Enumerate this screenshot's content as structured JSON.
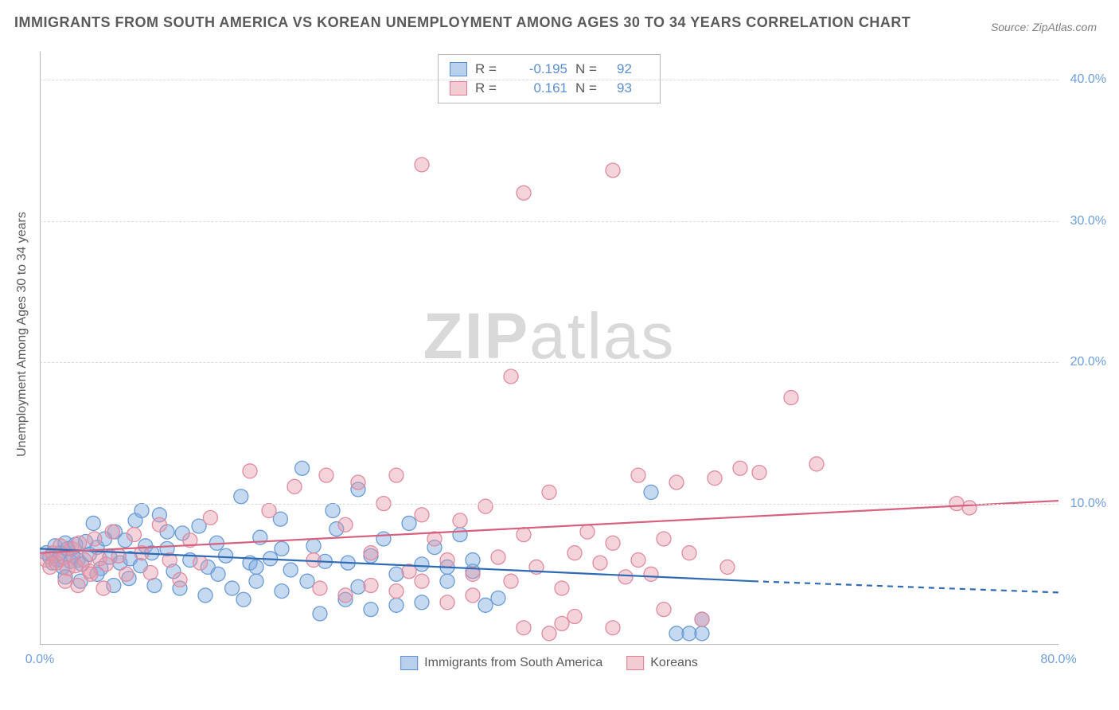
{
  "title": "IMMIGRANTS FROM SOUTH AMERICA VS KOREAN UNEMPLOYMENT AMONG AGES 30 TO 34 YEARS CORRELATION CHART",
  "source": "Source: ZipAtlas.com",
  "y_axis_label": "Unemployment Among Ages 30 to 34 years",
  "watermark_a": "ZIP",
  "watermark_b": "atlas",
  "chart": {
    "type": "scatter",
    "xlim": [
      0,
      80
    ],
    "ylim": [
      0,
      42
    ],
    "y_ticks": [
      {
        "v": 10,
        "label": "10.0%"
      },
      {
        "v": 20,
        "label": "20.0%"
      },
      {
        "v": 30,
        "label": "30.0%"
      },
      {
        "v": 40,
        "label": "40.0%"
      }
    ],
    "x_ticks": [
      {
        "v": 0,
        "label": "0.0%"
      },
      {
        "v": 80,
        "label": "80.0%"
      }
    ],
    "grid_color": "#d9d9d9",
    "tick_label_color": "#6f9fdc",
    "axis_label_color": "#5a5a5a",
    "background_color": "#ffffff",
    "series": [
      {
        "name": "Immigrants from South America",
        "color_fill": "rgba(127,170,223,0.45)",
        "color_stroke": "#6a9bd6",
        "marker_radius": 9,
        "R": "-0.195",
        "N": "92",
        "trend": {
          "x1": 0,
          "y1": 6.8,
          "x2": 56,
          "y2": 4.5,
          "color": "#2f6bb5",
          "width": 2.2,
          "dash_from_x": 56,
          "x_end": 80,
          "y_end": 3.7
        },
        "points": [
          [
            0.5,
            6.5
          ],
          [
            0.8,
            6.2
          ],
          [
            1.0,
            5.8
          ],
          [
            1.2,
            7.0
          ],
          [
            1.4,
            6.0
          ],
          [
            1.6,
            6.5
          ],
          [
            1.8,
            5.5
          ],
          [
            2.0,
            7.2
          ],
          [
            2.2,
            6.8
          ],
          [
            2.4,
            5.9
          ],
          [
            2.6,
            6.3
          ],
          [
            2.8,
            7.1
          ],
          [
            3.0,
            6.0
          ],
          [
            3.3,
            5.7
          ],
          [
            3.6,
            7.3
          ],
          [
            3.9,
            6.4
          ],
          [
            4.2,
            8.6
          ],
          [
            4.5,
            6.9
          ],
          [
            4.8,
            5.4
          ],
          [
            5.1,
            7.5
          ],
          [
            5.5,
            6.2
          ],
          [
            5.9,
            8.0
          ],
          [
            6.3,
            5.8
          ],
          [
            6.7,
            7.4
          ],
          [
            7.1,
            6.1
          ],
          [
            7.5,
            8.8
          ],
          [
            7.9,
            5.6
          ],
          [
            8.3,
            7.0
          ],
          [
            8.8,
            6.5
          ],
          [
            9.4,
            9.2
          ],
          [
            2.0,
            4.8
          ],
          [
            3.2,
            4.5
          ],
          [
            4.5,
            5.0
          ],
          [
            5.8,
            4.2
          ],
          [
            7.0,
            4.7
          ],
          [
            10.0,
            6.8
          ],
          [
            10.5,
            5.2
          ],
          [
            11.2,
            7.9
          ],
          [
            11.8,
            6.0
          ],
          [
            12.5,
            8.4
          ],
          [
            13.2,
            5.5
          ],
          [
            13.9,
            7.2
          ],
          [
            14.6,
            6.3
          ],
          [
            15.1,
            4.0
          ],
          [
            15.8,
            10.5
          ],
          [
            16.5,
            5.8
          ],
          [
            17.3,
            7.6
          ],
          [
            18.1,
            6.1
          ],
          [
            18.9,
            8.9
          ],
          [
            19.7,
            5.3
          ],
          [
            20.6,
            12.5
          ],
          [
            21.5,
            7.0
          ],
          [
            22.4,
            5.9
          ],
          [
            23.3,
            8.2
          ],
          [
            24.2,
            5.8
          ],
          [
            25,
            11.0
          ],
          [
            25,
            4.1
          ],
          [
            26,
            6.3
          ],
          [
            27,
            7.5
          ],
          [
            28,
            5.0
          ],
          [
            29,
            8.6
          ],
          [
            30,
            5.7
          ],
          [
            31,
            6.9
          ],
          [
            32,
            4.5
          ],
          [
            33,
            7.8
          ],
          [
            34,
            5.2
          ],
          [
            26,
            2.5
          ],
          [
            28,
            2.8
          ],
          [
            30,
            3.0
          ],
          [
            24,
            3.2
          ],
          [
            22,
            2.2
          ],
          [
            23,
            9.5
          ],
          [
            17,
            4.5
          ],
          [
            19,
            3.8
          ],
          [
            35,
            2.8
          ],
          [
            36,
            3.3
          ],
          [
            34,
            6.0
          ],
          [
            32,
            5.5
          ],
          [
            48,
            10.8
          ],
          [
            50,
            0.8
          ],
          [
            51,
            0.8
          ],
          [
            52,
            0.8
          ],
          [
            52,
            1.8
          ],
          [
            11,
            4.0
          ],
          [
            13,
            3.5
          ],
          [
            16,
            3.2
          ],
          [
            19,
            6.8
          ],
          [
            21,
            4.5
          ],
          [
            8,
            9.5
          ],
          [
            9,
            4.2
          ],
          [
            10,
            8.0
          ],
          [
            14,
            5.0
          ],
          [
            17,
            5.5
          ]
        ]
      },
      {
        "name": "Koreans",
        "color_fill": "rgba(232,151,168,0.42)",
        "color_stroke": "#e08ba0",
        "marker_radius": 9,
        "R": "0.161",
        "N": "93",
        "trend": {
          "x1": 0,
          "y1": 6.5,
          "x2": 80,
          "y2": 10.2,
          "color": "#d6607d",
          "width": 2.2
        },
        "points": [
          [
            0.5,
            6.0
          ],
          [
            0.8,
            5.5
          ],
          [
            1.0,
            6.5
          ],
          [
            1.3,
            5.8
          ],
          [
            1.6,
            7.0
          ],
          [
            1.9,
            6.2
          ],
          [
            2.2,
            5.4
          ],
          [
            2.5,
            6.8
          ],
          [
            2.8,
            5.6
          ],
          [
            3.1,
            7.2
          ],
          [
            3.5,
            6.0
          ],
          [
            3.9,
            5.2
          ],
          [
            4.3,
            7.5
          ],
          [
            4.7,
            6.1
          ],
          [
            5.2,
            5.7
          ],
          [
            5.7,
            8.0
          ],
          [
            6.2,
            6.3
          ],
          [
            6.8,
            5.0
          ],
          [
            7.4,
            7.8
          ],
          [
            8.0,
            6.5
          ],
          [
            2.0,
            4.5
          ],
          [
            3.0,
            4.2
          ],
          [
            4.0,
            5.0
          ],
          [
            5.0,
            4.0
          ],
          [
            8.7,
            5.1
          ],
          [
            9.4,
            8.5
          ],
          [
            10.2,
            6.0
          ],
          [
            11.0,
            4.6
          ],
          [
            11.8,
            7.4
          ],
          [
            12.6,
            5.8
          ],
          [
            13.4,
            9.0
          ],
          [
            16.5,
            12.3
          ],
          [
            18,
            9.5
          ],
          [
            20,
            11.2
          ],
          [
            21.5,
            6.0
          ],
          [
            22.5,
            12.0
          ],
          [
            24,
            8.5
          ],
          [
            25,
            11.5
          ],
          [
            26,
            6.5
          ],
          [
            27,
            10.0
          ],
          [
            28,
            12.0
          ],
          [
            29,
            5.2
          ],
          [
            30,
            9.2
          ],
          [
            31,
            7.5
          ],
          [
            32,
            6.0
          ],
          [
            33,
            8.8
          ],
          [
            30,
            34.0
          ],
          [
            38,
            32.0
          ],
          [
            45,
            33.6
          ],
          [
            37,
            19.0
          ],
          [
            34,
            5.0
          ],
          [
            35,
            9.8
          ],
          [
            36,
            6.2
          ],
          [
            37,
            4.5
          ],
          [
            38,
            7.8
          ],
          [
            39,
            5.5
          ],
          [
            40,
            10.8
          ],
          [
            41,
            4.0
          ],
          [
            42,
            6.5
          ],
          [
            43,
            8.0
          ],
          [
            44,
            5.8
          ],
          [
            45,
            7.2
          ],
          [
            46,
            4.8
          ],
          [
            47,
            6.0
          ],
          [
            47,
            12.0
          ],
          [
            48,
            5.0
          ],
          [
            49,
            7.5
          ],
          [
            50,
            11.5
          ],
          [
            51,
            6.5
          ],
          [
            45,
            1.2
          ],
          [
            38,
            1.2
          ],
          [
            40,
            0.8
          ],
          [
            41,
            1.5
          ],
          [
            42,
            2.0
          ],
          [
            53,
            11.8
          ],
          [
            55,
            12.5
          ],
          [
            56.5,
            12.2
          ],
          [
            59,
            17.5
          ],
          [
            61,
            12.8
          ],
          [
            72,
            10.0
          ],
          [
            73,
            9.7
          ],
          [
            49,
            2.5
          ],
          [
            52,
            1.8
          ],
          [
            54,
            5.5
          ],
          [
            22,
            4.0
          ],
          [
            24,
            3.5
          ],
          [
            26,
            4.2
          ],
          [
            28,
            3.8
          ],
          [
            30,
            4.5
          ],
          [
            32,
            3.0
          ],
          [
            34,
            3.5
          ]
        ]
      }
    ]
  },
  "legend_bottom": [
    {
      "swatch": "blue",
      "label": "Immigrants from South America"
    },
    {
      "swatch": "pink",
      "label": "Koreans"
    }
  ],
  "legend_top": [
    {
      "swatch": "blue",
      "R": "-0.195",
      "N": "92"
    },
    {
      "swatch": "pink",
      "R": "0.161",
      "N": "93"
    }
  ]
}
